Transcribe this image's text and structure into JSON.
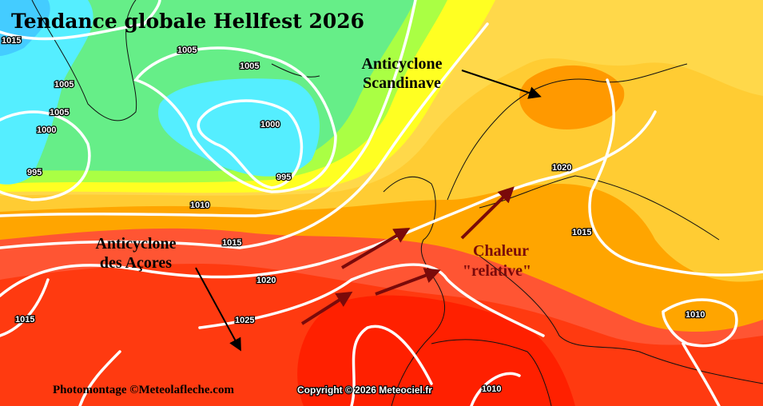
{
  "title": "Tendance globale Hellfest 2026",
  "annotations": {
    "scandinavian_high": [
      "Anticyclone",
      "Scandinave"
    ],
    "azores_high": [
      "Anticyclone",
      "des Açores"
    ],
    "heat": [
      "Chaleur",
      "\"relative\""
    ]
  },
  "isobar_labels": [
    "1015",
    "1005",
    "1005",
    "1005",
    "1005",
    "1000",
    "1000",
    "995",
    "995",
    "1010",
    "1015",
    "1020",
    "1025",
    "1015",
    "1020",
    "1015",
    "1010",
    "1010"
  ],
  "credits": {
    "photomontage": "Photomontage ©Meteolafleche.com",
    "copyright": "Copyright © 2026 Meteociel.fr"
  },
  "colors": {
    "low_pressure": "#55eeff",
    "green": "#66ee88",
    "yellow": "#ffff22",
    "gold": "#ffcc33",
    "orange": "#ffa500",
    "red_orange": "#ff5533",
    "red": "#ff2000",
    "heat_arrow": "#7a0a0a"
  }
}
